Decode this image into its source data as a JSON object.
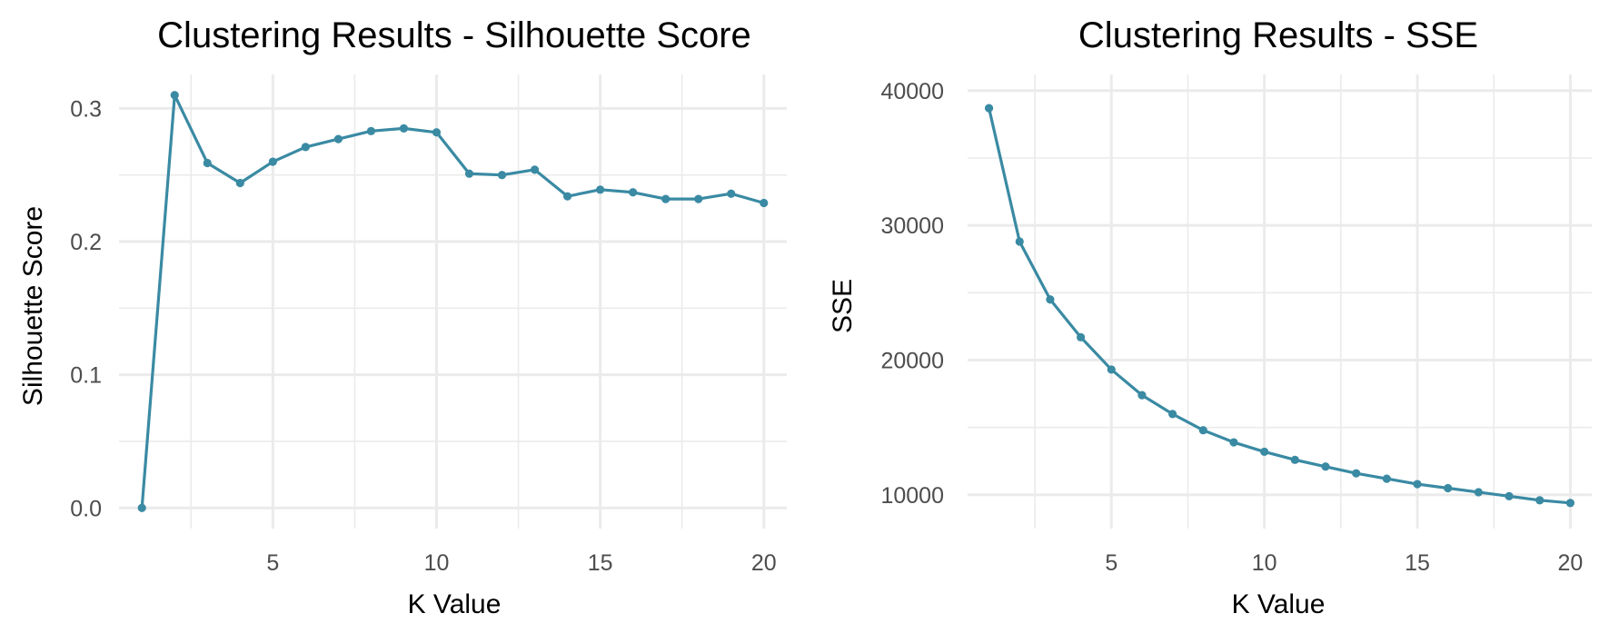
{
  "colors": {
    "series": "#3a8aa3"
  },
  "chart_data": [
    {
      "type": "line",
      "title": "Clustering Results - Silhouette Score",
      "xlabel": "K Value",
      "ylabel": "Silhouette Score",
      "xlim": [
        0.3,
        20.7
      ],
      "ylim": [
        -0.0155,
        0.3255
      ],
      "x_major_ticks": [
        5,
        10,
        15,
        20
      ],
      "x_minor_ticks": [
        2.5,
        7.5,
        12.5,
        17.5
      ],
      "y_major_ticks": [
        0.0,
        0.1,
        0.2,
        0.3
      ],
      "y_minor_ticks": [
        0.05,
        0.15,
        0.25
      ],
      "x_tick_labels": [
        "5",
        "10",
        "15",
        "20"
      ],
      "y_tick_labels": [
        "0.0",
        "0.1",
        "0.2",
        "0.3"
      ],
      "grid": true,
      "x": [
        1,
        2,
        3,
        4,
        5,
        6,
        7,
        8,
        9,
        10,
        11,
        12,
        13,
        14,
        15,
        16,
        17,
        18,
        19,
        20
      ],
      "series": [
        {
          "values": [
            0.0,
            0.31,
            0.259,
            0.244,
            0.26,
            0.271,
            0.277,
            0.283,
            0.285,
            0.282,
            0.251,
            0.25,
            0.254,
            0.234,
            0.239,
            0.237,
            0.232,
            0.232,
            0.236,
            0.229
          ]
        }
      ]
    },
    {
      "type": "line",
      "title": "Clustering Results - SSE",
      "xlabel": "K Value",
      "ylabel": "SSE",
      "xlim": [
        0.3,
        20.7
      ],
      "ylim": [
        7500,
        41200
      ],
      "x_major_ticks": [
        5,
        10,
        15,
        20
      ],
      "x_minor_ticks": [
        2.5,
        7.5,
        12.5,
        17.5
      ],
      "y_major_ticks": [
        10000,
        20000,
        30000,
        40000
      ],
      "y_minor_ticks": [
        15000,
        25000,
        35000
      ],
      "x_tick_labels": [
        "5",
        "10",
        "15",
        "20"
      ],
      "y_tick_labels": [
        "10000",
        "20000",
        "30000",
        "40000"
      ],
      "grid": true,
      "x": [
        1,
        2,
        3,
        4,
        5,
        6,
        7,
        8,
        9,
        10,
        11,
        12,
        13,
        14,
        15,
        16,
        17,
        18,
        19,
        20
      ],
      "series": [
        {
          "values": [
            38700,
            28800,
            24500,
            21700,
            19300,
            17400,
            16000,
            14800,
            13900,
            13200,
            12600,
            12100,
            11600,
            11200,
            10800,
            10500,
            10200,
            9900,
            9600,
            9400
          ]
        }
      ]
    }
  ]
}
